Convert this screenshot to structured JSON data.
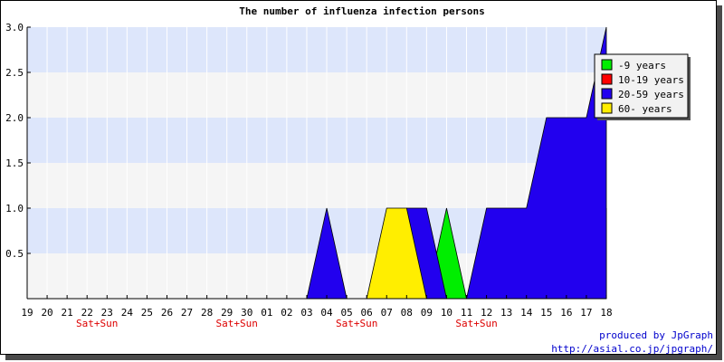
{
  "chart_data": {
    "type": "area",
    "title": "The number of influenza infection persons",
    "x": [
      "19",
      "20",
      "21",
      "22",
      "23",
      "24",
      "25",
      "26",
      "27",
      "28",
      "29",
      "30",
      "01",
      "02",
      "03",
      "04",
      "05",
      "06",
      "07",
      "08",
      "09",
      "10",
      "11",
      "12",
      "13",
      "14",
      "15",
      "16",
      "17",
      "18"
    ],
    "weekend_labels": [
      {
        "after": "22",
        "label": "Sat+Sun"
      },
      {
        "after": "29",
        "label": "Sat+Sun"
      },
      {
        "after": "05",
        "label": "Sat+Sun"
      },
      {
        "after": "11",
        "label": "Sat+Sun"
      }
    ],
    "yticks": [
      "0.5",
      "1.0",
      "1.5",
      "2.0",
      "2.5",
      "3.0"
    ],
    "ylim": [
      0,
      3
    ],
    "series": [
      {
        "name": "-9 years",
        "color": "#00ee00",
        "values": [
          0,
          0,
          0,
          0,
          0,
          0,
          0,
          0,
          0,
          0,
          0,
          0,
          0,
          0,
          0,
          0,
          0,
          0,
          0,
          0,
          0,
          1,
          0,
          0,
          0,
          0,
          0,
          0,
          0,
          0
        ]
      },
      {
        "name": "10-19 years",
        "color": "#ff0000",
        "values": [
          0,
          0,
          0,
          0,
          0,
          0,
          0,
          0,
          0,
          0,
          0,
          0,
          0,
          0,
          0,
          0,
          0,
          0,
          0,
          0,
          0,
          0,
          0,
          0,
          1,
          0,
          0,
          0,
          0,
          1
        ]
      },
      {
        "name": "20-59 years",
        "color": "#2200ee",
        "values": [
          0,
          0,
          0,
          0,
          0,
          0,
          0,
          0,
          0,
          0,
          0,
          0,
          0,
          0,
          0,
          1,
          0,
          0,
          0,
          1,
          1,
          0,
          0,
          1,
          1,
          1,
          2,
          2,
          2,
          3
        ]
      },
      {
        "name": "60- years",
        "color": "#ffee00",
        "values": [
          0,
          0,
          0,
          0,
          0,
          0,
          0,
          0,
          0,
          0,
          0,
          0,
          0,
          0,
          0,
          0,
          0,
          0,
          1,
          1,
          0,
          0,
          0,
          0,
          0,
          0,
          0,
          0,
          0,
          0
        ]
      }
    ],
    "band_colors": [
      "#f5f5f5",
      "#dde6fb"
    ],
    "legend_position": "top-right"
  },
  "footer": {
    "line1": "produced by JpGraph",
    "line2": "http://asial.co.jp/jpgraph/"
  }
}
